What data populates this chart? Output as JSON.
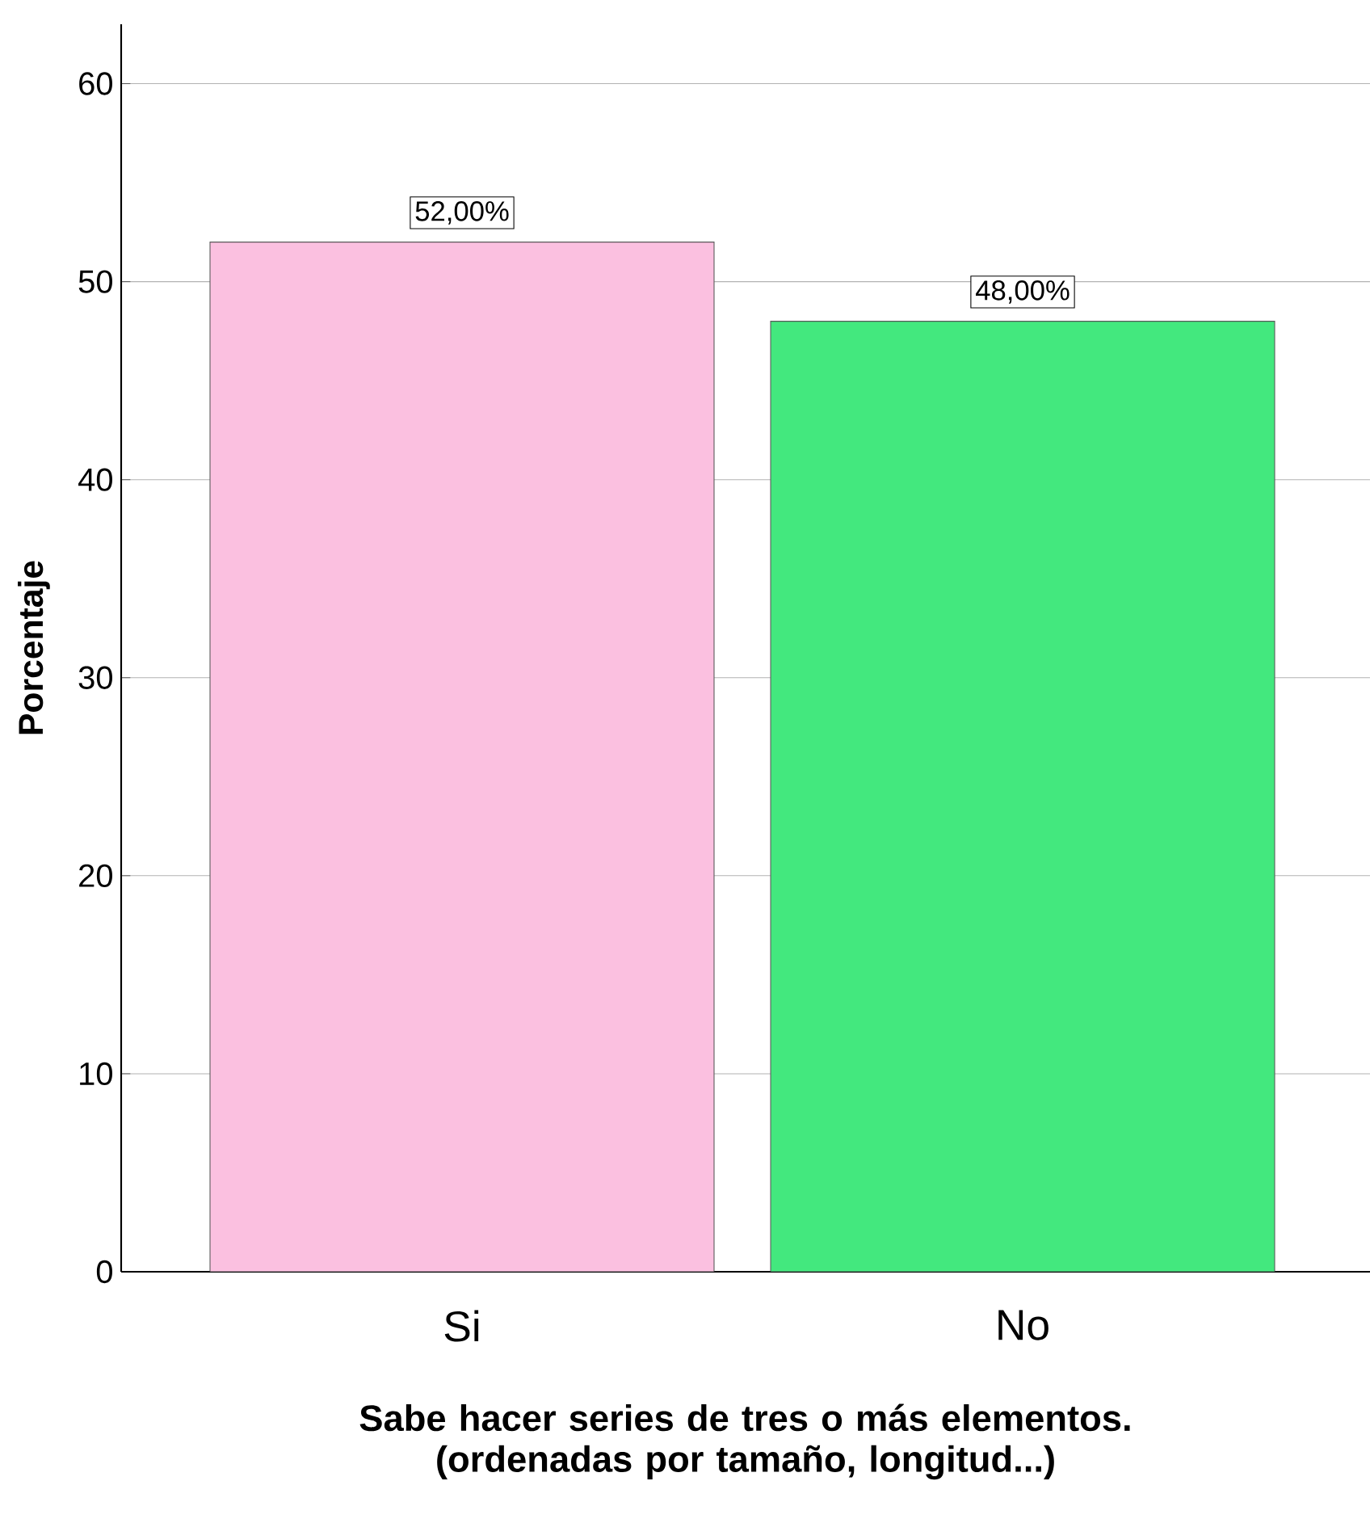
{
  "chart_data": {
    "type": "bar",
    "xlabel": "Sabe hacer series de tres o más elementos. (ordenadas por tamaño, longitud...)",
    "ylabel": "Porcentaje",
    "categories": [
      "Si",
      "No"
    ],
    "values": [
      52,
      48
    ],
    "colors": [
      "#fbc0e0",
      "#43e87e"
    ],
    "value_labels": [
      "52,00%",
      "48,00%"
    ],
    "ylim": [
      0,
      63
    ],
    "yticks": [
      0,
      10,
      20,
      30,
      40,
      50,
      60
    ],
    "grid": "y"
  }
}
